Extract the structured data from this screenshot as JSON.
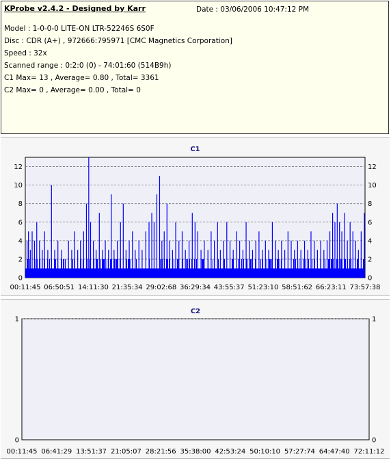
{
  "header": {
    "title": "KProbe v2.4.2 - Designed by Karr",
    "date": "Date : 03/06/2006 10:47:12 PM",
    "model": "Model : 1-0-0-0 LITE-ON LTR-52246S        6S0F",
    "disc": "Disc : CDR (A+) , 972666:795971 [CMC Magnetics Corporation]",
    "speed": "Speed : 32x",
    "range": "Scanned range : 0:2:0 (0) - 74:01:60 (514B9h)",
    "c1": "C1 Max= 13 , Average= 0.80 , Total= 3361",
    "c2": "C2 Max= 0 , Average= 0.00 , Total= 0"
  },
  "colors": {
    "bar": "#0000ff",
    "plot_bg": "#efeff8",
    "title": "#1a1a80",
    "grid": "#777777"
  },
  "chart_data": [
    {
      "type": "bar",
      "title": "C1",
      "ylim": [
        0,
        13
      ],
      "yticks": [
        0,
        2,
        4,
        6,
        8,
        10,
        12
      ],
      "xlim_minutes": [
        0.2,
        74.03
      ],
      "xticks": [
        "00:11:45",
        "06:50:51",
        "14:11:30",
        "21:35:34",
        "29:02:68",
        "36:29:34",
        "43:55:37",
        "51:23:10",
        "58:51:62",
        "66:23:11",
        "73:57:38"
      ],
      "grid": "dashed horizontal",
      "spikes": [
        {
          "x": 0.5,
          "y": 4
        },
        {
          "x": 0.8,
          "y": 5
        },
        {
          "x": 1.2,
          "y": 3
        },
        {
          "x": 1.6,
          "y": 5
        },
        {
          "x": 2.1,
          "y": 4
        },
        {
          "x": 2.6,
          "y": 6
        },
        {
          "x": 3.2,
          "y": 4
        },
        {
          "x": 3.8,
          "y": 3
        },
        {
          "x": 4.3,
          "y": 5
        },
        {
          "x": 5.0,
          "y": 3
        },
        {
          "x": 5.8,
          "y": 10
        },
        {
          "x": 6.5,
          "y": 3
        },
        {
          "x": 7.2,
          "y": 4
        },
        {
          "x": 8.0,
          "y": 3
        },
        {
          "x": 8.8,
          "y": 2
        },
        {
          "x": 9.5,
          "y": 4
        },
        {
          "x": 10.2,
          "y": 3
        },
        {
          "x": 10.8,
          "y": 5
        },
        {
          "x": 11.5,
          "y": 3
        },
        {
          "x": 12.1,
          "y": 4
        },
        {
          "x": 12.8,
          "y": 5
        },
        {
          "x": 13.4,
          "y": 8
        },
        {
          "x": 13.9,
          "y": 13
        },
        {
          "x": 14.3,
          "y": 6
        },
        {
          "x": 14.9,
          "y": 4
        },
        {
          "x": 15.5,
          "y": 3
        },
        {
          "x": 16.2,
          "y": 7
        },
        {
          "x": 16.9,
          "y": 3
        },
        {
          "x": 17.5,
          "y": 4
        },
        {
          "x": 18.2,
          "y": 3
        },
        {
          "x": 18.8,
          "y": 9
        },
        {
          "x": 19.4,
          "y": 3
        },
        {
          "x": 20.1,
          "y": 4
        },
        {
          "x": 20.8,
          "y": 6
        },
        {
          "x": 21.4,
          "y": 8
        },
        {
          "x": 22.0,
          "y": 3
        },
        {
          "x": 22.7,
          "y": 4
        },
        {
          "x": 23.4,
          "y": 5
        },
        {
          "x": 24.0,
          "y": 3
        },
        {
          "x": 24.8,
          "y": 4
        },
        {
          "x": 25.5,
          "y": 3
        },
        {
          "x": 26.3,
          "y": 5
        },
        {
          "x": 27.0,
          "y": 6
        },
        {
          "x": 27.6,
          "y": 7
        },
        {
          "x": 28.1,
          "y": 6
        },
        {
          "x": 28.7,
          "y": 9
        },
        {
          "x": 29.3,
          "y": 11
        },
        {
          "x": 29.8,
          "y": 4
        },
        {
          "x": 30.3,
          "y": 5
        },
        {
          "x": 30.9,
          "y": 8
        },
        {
          "x": 31.5,
          "y": 4
        },
        {
          "x": 32.1,
          "y": 3
        },
        {
          "x": 32.8,
          "y": 6
        },
        {
          "x": 33.5,
          "y": 4
        },
        {
          "x": 34.2,
          "y": 5
        },
        {
          "x": 34.9,
          "y": 3
        },
        {
          "x": 35.7,
          "y": 4
        },
        {
          "x": 36.4,
          "y": 7
        },
        {
          "x": 37.0,
          "y": 6
        },
        {
          "x": 37.6,
          "y": 5
        },
        {
          "x": 38.3,
          "y": 3
        },
        {
          "x": 39.0,
          "y": 4
        },
        {
          "x": 39.8,
          "y": 3
        },
        {
          "x": 40.5,
          "y": 5
        },
        {
          "x": 41.2,
          "y": 4
        },
        {
          "x": 41.9,
          "y": 6
        },
        {
          "x": 42.5,
          "y": 3
        },
        {
          "x": 43.2,
          "y": 4
        },
        {
          "x": 43.9,
          "y": 6
        },
        {
          "x": 44.6,
          "y": 4
        },
        {
          "x": 45.3,
          "y": 3
        },
        {
          "x": 46.0,
          "y": 5
        },
        {
          "x": 46.7,
          "y": 4
        },
        {
          "x": 47.4,
          "y": 3
        },
        {
          "x": 48.1,
          "y": 6
        },
        {
          "x": 48.8,
          "y": 4
        },
        {
          "x": 49.5,
          "y": 3
        },
        {
          "x": 50.2,
          "y": 4
        },
        {
          "x": 50.9,
          "y": 5
        },
        {
          "x": 51.6,
          "y": 3
        },
        {
          "x": 52.3,
          "y": 4
        },
        {
          "x": 53.0,
          "y": 3
        },
        {
          "x": 53.8,
          "y": 6
        },
        {
          "x": 54.5,
          "y": 4
        },
        {
          "x": 55.1,
          "y": 3
        },
        {
          "x": 55.8,
          "y": 4
        },
        {
          "x": 56.5,
          "y": 3
        },
        {
          "x": 57.2,
          "y": 5
        },
        {
          "x": 57.9,
          "y": 4
        },
        {
          "x": 58.6,
          "y": 3
        },
        {
          "x": 59.3,
          "y": 4
        },
        {
          "x": 60.0,
          "y": 3
        },
        {
          "x": 60.8,
          "y": 4
        },
        {
          "x": 61.5,
          "y": 3
        },
        {
          "x": 62.2,
          "y": 5
        },
        {
          "x": 62.9,
          "y": 4
        },
        {
          "x": 63.6,
          "y": 3
        },
        {
          "x": 64.3,
          "y": 4
        },
        {
          "x": 65.0,
          "y": 3
        },
        {
          "x": 65.7,
          "y": 4
        },
        {
          "x": 66.3,
          "y": 5
        },
        {
          "x": 66.9,
          "y": 7
        },
        {
          "x": 67.4,
          "y": 6
        },
        {
          "x": 67.9,
          "y": 8
        },
        {
          "x": 68.4,
          "y": 6
        },
        {
          "x": 68.9,
          "y": 5
        },
        {
          "x": 69.5,
          "y": 7
        },
        {
          "x": 70.1,
          "y": 4
        },
        {
          "x": 70.7,
          "y": 6
        },
        {
          "x": 71.3,
          "y": 5
        },
        {
          "x": 71.9,
          "y": 4
        },
        {
          "x": 72.5,
          "y": 3
        },
        {
          "x": 73.1,
          "y": 5
        },
        {
          "x": 73.8,
          "y": 7
        }
      ]
    },
    {
      "type": "bar",
      "title": "C2",
      "ylim": [
        0,
        1
      ],
      "yticks": [
        0,
        1
      ],
      "xlim_minutes": [
        0.2,
        72.2
      ],
      "xticks": [
        "00:11:45",
        "06:41:29",
        "13:51:37",
        "21:05:07",
        "28:21:56",
        "35:38:00",
        "42:53:24",
        "50:10:10",
        "57:27:74",
        "64:47:40",
        "72:11:12"
      ],
      "grid": "dashed horizontal",
      "spikes": []
    }
  ]
}
